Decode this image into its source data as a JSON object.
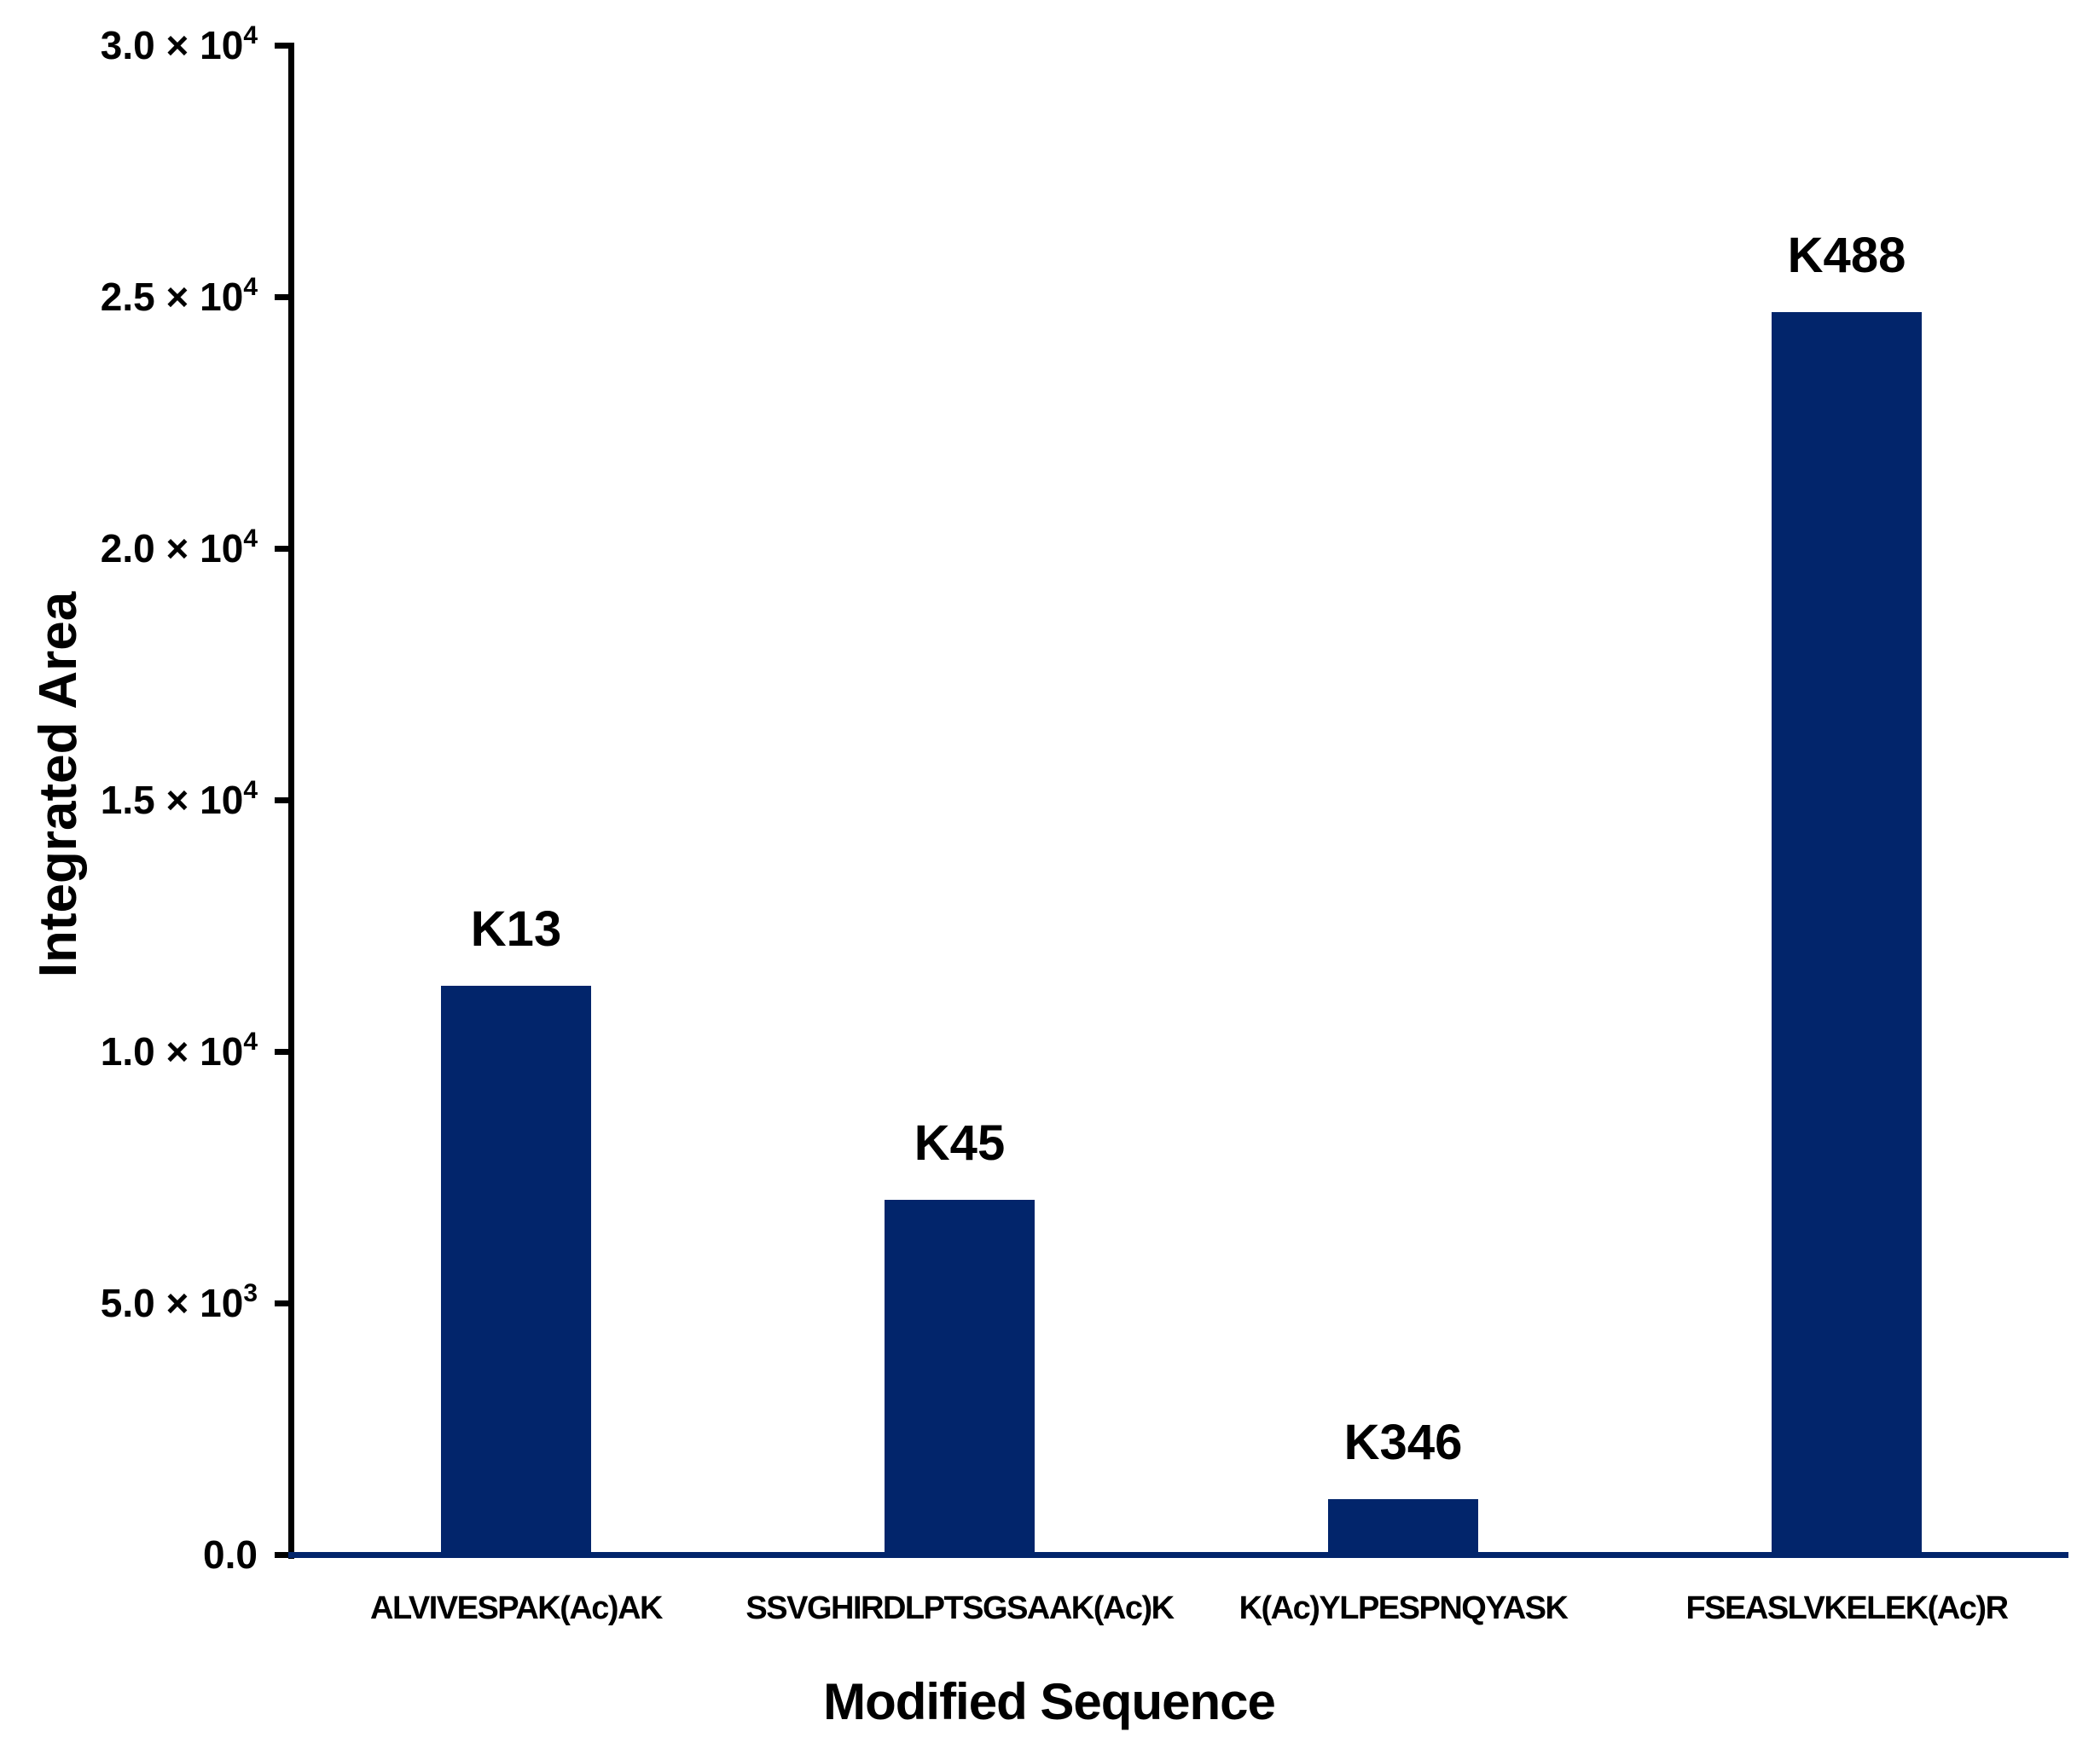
{
  "figure": {
    "background": "#ffffff",
    "bar_color": "#02256B",
    "axis_color": "#000000",
    "baseline_color": "#02256B"
  },
  "chart_data": {
    "type": "bar",
    "title": "",
    "xlabel": "Modified Sequence",
    "ylabel": "Integrated Area",
    "ylim": [
      0,
      30000
    ],
    "grid": false,
    "legend": false,
    "yticks": [
      {
        "value": 0,
        "base": "0.0",
        "exp": ""
      },
      {
        "value": 5000,
        "base": "5.0 × 10",
        "exp": "3"
      },
      {
        "value": 10000,
        "base": "1.0 × 10",
        "exp": "4"
      },
      {
        "value": 15000,
        "base": "1.5 × 10",
        "exp": "4"
      },
      {
        "value": 20000,
        "base": "2.0 × 10",
        "exp": "4"
      },
      {
        "value": 25000,
        "base": "2.5 × 10",
        "exp": "4"
      },
      {
        "value": 30000,
        "base": "3.0 × 10",
        "exp": "4"
      }
    ],
    "categories": [
      "ALVIVESPAK(Ac)AK",
      "SSVGHIRDLPTSGSAAK(Ac)K",
      "K(Ac)YLPESPNQYASK",
      "FSEASLVKELEK(Ac)R"
    ],
    "series": [
      {
        "name": "Integrated Area",
        "values": [
          11300,
          7050,
          1100,
          24700
        ],
        "point_labels": [
          "K13",
          "K45",
          "K346",
          "K488"
        ]
      }
    ]
  }
}
